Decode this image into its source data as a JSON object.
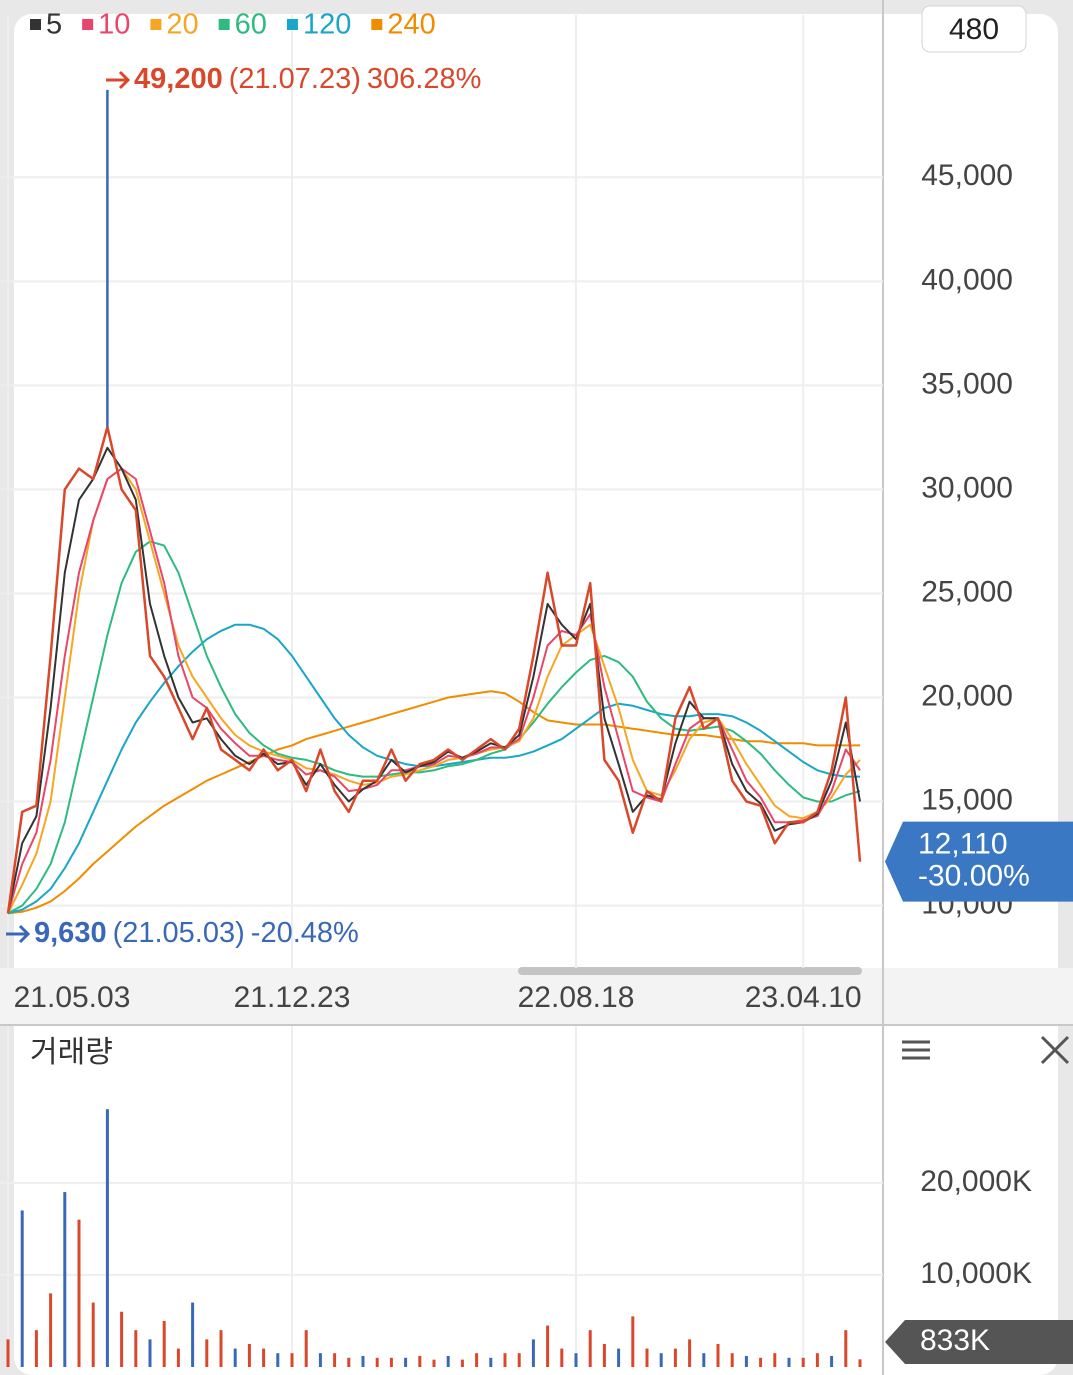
{
  "toolbar": {
    "period": "480"
  },
  "chart_data": [
    {
      "type": "line",
      "categories": [
        "21.05.03",
        null,
        null,
        null,
        null,
        null,
        null,
        null,
        null,
        null,
        null,
        null,
        null,
        null,
        null,
        null,
        null,
        null,
        null,
        null,
        "21.12.23",
        null,
        null,
        null,
        null,
        null,
        null,
        null,
        null,
        null,
        null,
        null,
        null,
        null,
        null,
        null,
        null,
        null,
        null,
        null,
        "22.08.18",
        null,
        null,
        null,
        null,
        null,
        null,
        null,
        null,
        null,
        null,
        null,
        null,
        null,
        null,
        null,
        "23.04.10",
        null,
        null,
        null,
        null
      ],
      "values": [
        9630,
        14500,
        14800,
        22000,
        30000,
        31000,
        30500,
        33000,
        30000,
        29000,
        22000,
        21000,
        19500,
        18000,
        19500,
        17500,
        17000,
        16500,
        17500,
        16500,
        17000,
        15500,
        17500,
        15500,
        14500,
        16000,
        16000,
        17500,
        16000,
        16800,
        17000,
        17500,
        17000,
        17500,
        18000,
        17500,
        18500,
        22000,
        26000,
        22500,
        22500,
        25500,
        17000,
        16000,
        13500,
        15500,
        15000,
        19000,
        20500,
        18500,
        19000,
        16000,
        15000,
        14800,
        13000,
        14000,
        14000,
        14500,
        16500,
        20000,
        12110
      ],
      "color": "#d9482b",
      "series": [
        {
          "name": "5",
          "color": "#333333",
          "values": [
            9630,
            13000,
            14300,
            19500,
            26000,
            29500,
            30500,
            32000,
            31000,
            29500,
            24500,
            22000,
            20000,
            18800,
            19000,
            18000,
            17200,
            16800,
            17300,
            16800,
            16900,
            15800,
            16800,
            15800,
            15000,
            15600,
            16000,
            17000,
            16400,
            16700,
            16900,
            17400,
            17100,
            17400,
            17800,
            17600,
            18200,
            21000,
            24500,
            23500,
            22800,
            24500,
            19000,
            16800,
            14500,
            15300,
            15100,
            17800,
            19800,
            19000,
            19000,
            16800,
            15500,
            14900,
            13600,
            13900,
            14000,
            14400,
            16000,
            18800,
            15000
          ]
        },
        {
          "name": "10",
          "color": "#e8466a",
          "values": [
            9630,
            12000,
            13500,
            17000,
            22000,
            26000,
            28500,
            30500,
            31000,
            30500,
            28000,
            25500,
            22000,
            20000,
            19500,
            18500,
            17800,
            17200,
            17200,
            17000,
            16900,
            16300,
            16500,
            16200,
            15500,
            15600,
            15800,
            16500,
            16500,
            16700,
            16800,
            17200,
            17100,
            17300,
            17600,
            17600,
            18000,
            20000,
            22500,
            23200,
            23000,
            24000,
            20500,
            18000,
            15500,
            15200,
            15000,
            16800,
            18500,
            19000,
            19000,
            17500,
            16000,
            15200,
            14000,
            14000,
            14100,
            14300,
            15500,
            17500,
            16500
          ]
        },
        {
          "name": "20",
          "color": "#f5a623",
          "values": [
            9630,
            11000,
            12500,
            15000,
            20000,
            25000,
            28500,
            30500,
            31000,
            30000,
            27500,
            25000,
            22500,
            21000,
            20000,
            19000,
            18200,
            17700,
            17400,
            17200,
            17000,
            16600,
            16500,
            16300,
            16000,
            15800,
            15900,
            16200,
            16300,
            16500,
            16700,
            17000,
            17100,
            17300,
            17500,
            17600,
            17900,
            19000,
            21000,
            22500,
            23000,
            23500,
            21500,
            19500,
            17000,
            15500,
            15300,
            16500,
            18000,
            18800,
            19000,
            18000,
            16800,
            15800,
            14800,
            14300,
            14200,
            14500,
            15200,
            16300,
            17000
          ]
        },
        {
          "name": "60",
          "color": "#2dbb7f",
          "values": [
            9630,
            10000,
            10800,
            12000,
            14000,
            17000,
            20000,
            23000,
            25500,
            27000,
            27500,
            27300,
            26000,
            24000,
            22000,
            20500,
            19200,
            18300,
            17700,
            17300,
            17100,
            17000,
            16800,
            16500,
            16300,
            16200,
            16200,
            16300,
            16400,
            16400,
            16500,
            16700,
            16800,
            17000,
            17300,
            17500,
            18000,
            18800,
            19700,
            20500,
            21200,
            21800,
            22000,
            21700,
            21000,
            19800,
            19000,
            18500,
            18400,
            18500,
            18600,
            18400,
            17900,
            17300,
            16500,
            15800,
            15200,
            15000,
            15000,
            15300,
            15500
          ]
        },
        {
          "name": "120",
          "color": "#1aa6c8",
          "values": [
            9630,
            9800,
            10200,
            10800,
            11800,
            13000,
            14500,
            16000,
            17500,
            18800,
            19800,
            20700,
            21500,
            22200,
            22800,
            23200,
            23500,
            23500,
            23300,
            22800,
            22000,
            21000,
            20000,
            19000,
            18200,
            17600,
            17200,
            17000,
            16800,
            16700,
            16700,
            16800,
            16900,
            17000,
            17100,
            17100,
            17200,
            17400,
            17700,
            18000,
            18500,
            19000,
            19500,
            19700,
            19600,
            19400,
            19200,
            19100,
            19100,
            19200,
            19200,
            19100,
            18800,
            18400,
            17900,
            17400,
            16900,
            16500,
            16300,
            16200,
            16200
          ]
        },
        {
          "name": "240",
          "color": "#f08c00",
          "values": [
            9630,
            9700,
            9900,
            10200,
            10700,
            11300,
            12000,
            12600,
            13200,
            13800,
            14300,
            14800,
            15200,
            15600,
            16000,
            16300,
            16600,
            16900,
            17200,
            17500,
            17700,
            18000,
            18200,
            18400,
            18600,
            18800,
            19000,
            19200,
            19400,
            19600,
            19800,
            20000,
            20100,
            20200,
            20300,
            20200,
            19800,
            19300,
            18900,
            18800,
            18700,
            18700,
            18700,
            18600,
            18500,
            18400,
            18300,
            18200,
            18200,
            18200,
            18100,
            18000,
            17900,
            17900,
            17800,
            17800,
            17800,
            17700,
            17700,
            17700,
            17700
          ]
        }
      ],
      "ylim": [
        7000,
        52800
      ],
      "yticks": [
        {
          "value": 10000,
          "label": "10,000"
        },
        {
          "value": 15000,
          "label": "15,000"
        },
        {
          "value": 20000,
          "label": "20,000"
        },
        {
          "value": 25000,
          "label": "25,000"
        },
        {
          "value": 30000,
          "label": "30,000"
        },
        {
          "value": 35000,
          "label": "35,000"
        },
        {
          "value": 40000,
          "label": "40,000"
        },
        {
          "value": 45000,
          "label": "45,000"
        }
      ],
      "grid": true,
      "high": {
        "value": 49200,
        "label": "49,200",
        "date": "(21.07.23)",
        "change": "306.28%"
      },
      "low": {
        "value": 9630,
        "label": "9,630",
        "date": "(21.05.03)",
        "change": "-20.48%"
      },
      "last": {
        "value": 12110,
        "label": "12,110",
        "change": "-30.00%"
      }
    },
    {
      "type": "bar",
      "title": "거래량",
      "values": [
        3000,
        17000,
        4000,
        8000,
        19000,
        16000,
        7000,
        28000,
        6000,
        4000,
        3000,
        5000,
        2000,
        7000,
        3000,
        4000,
        2000,
        2500,
        2000,
        1500,
        1500,
        4000,
        1500,
        1500,
        1000,
        1200,
        1000,
        1000,
        1000,
        1200,
        800,
        1200,
        800,
        1500,
        1000,
        1500,
        1500,
        3000,
        4500,
        2000,
        1500,
        4000,
        2500,
        2000,
        5500,
        2000,
        1500,
        2000,
        3000,
        1500,
        2500,
        1500,
        1200,
        1000,
        1500,
        1000,
        1000,
        1500,
        1200,
        4000,
        833
      ],
      "color": "#d9482b",
      "ylim": [
        0,
        36600
      ],
      "yticks": [
        {
          "value": 10000,
          "label": "10,000K"
        },
        {
          "value": 20000,
          "label": "20,000K"
        }
      ],
      "grid": true,
      "last": {
        "value": 833,
        "label": "833K"
      }
    }
  ]
}
